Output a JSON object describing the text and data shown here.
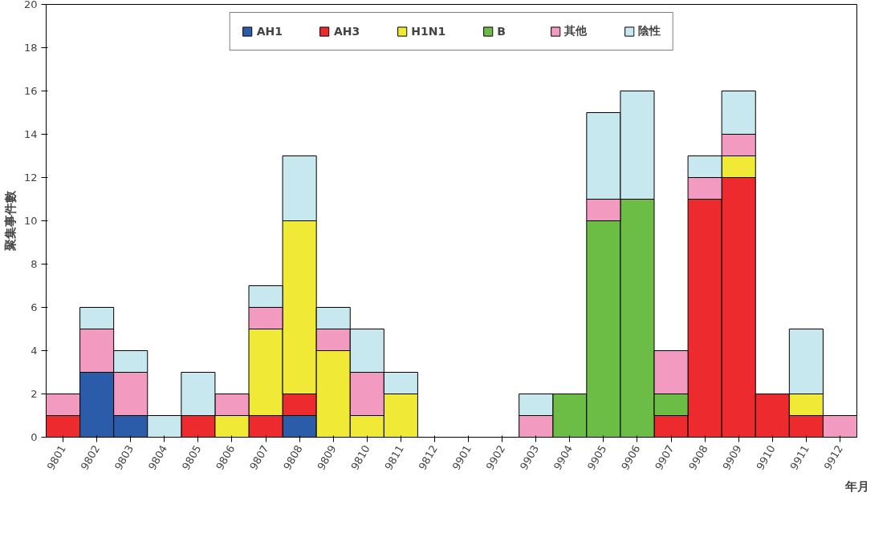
{
  "chart_data": {
    "type": "bar",
    "stacked": true,
    "ylabel": "聚集事件數",
    "xlabel": "年月",
    "categories": [
      "9801",
      "9802",
      "9803",
      "9804",
      "9805",
      "9806",
      "9807",
      "9808",
      "9809",
      "9810",
      "9811",
      "9812",
      "9901",
      "9902",
      "9903",
      "9904",
      "9905",
      "9906",
      "9907",
      "9908",
      "9909",
      "9910",
      "9911",
      "9912"
    ],
    "series": [
      {
        "name": "AH1",
        "color": "#2a5caa",
        "values": [
          0,
          3,
          1,
          0,
          0,
          0,
          0,
          1,
          0,
          0,
          0,
          0,
          0,
          0,
          0,
          0,
          0,
          0,
          0,
          0,
          0,
          0,
          0,
          0
        ]
      },
      {
        "name": "AH3",
        "color": "#ed2a2e",
        "values": [
          1,
          0,
          0,
          0,
          1,
          0,
          1,
          1,
          0,
          0,
          0,
          0,
          0,
          0,
          0,
          0,
          0,
          0,
          1,
          11,
          12,
          2,
          1,
          0
        ]
      },
      {
        "name": "H1N1",
        "color": "#f0e936",
        "values": [
          0,
          0,
          0,
          0,
          0,
          1,
          4,
          8,
          4,
          1,
          2,
          0,
          0,
          0,
          0,
          0,
          0,
          0,
          0,
          0,
          1,
          0,
          1,
          0
        ]
      },
      {
        "name": "B",
        "color": "#6cbd45",
        "values": [
          0,
          0,
          0,
          0,
          0,
          0,
          0,
          0,
          0,
          0,
          0,
          0,
          0,
          0,
          0,
          2,
          10,
          11,
          1,
          0,
          0,
          0,
          0,
          0
        ]
      },
      {
        "name": "其他",
        "color": "#f29ac0",
        "values": [
          1,
          2,
          2,
          0,
          0,
          1,
          1,
          0,
          1,
          2,
          0,
          0,
          0,
          0,
          1,
          0,
          1,
          0,
          2,
          1,
          1,
          0,
          0,
          1
        ]
      },
      {
        "name": "陰性",
        "color": "#c8e8ef",
        "values": [
          0,
          1,
          1,
          1,
          2,
          0,
          1,
          3,
          1,
          2,
          1,
          0,
          0,
          0,
          1,
          0,
          4,
          5,
          0,
          1,
          2,
          0,
          3,
          0
        ]
      }
    ],
    "ylim": [
      0,
      20
    ],
    "yticks": [
      0,
      2,
      4,
      6,
      8,
      10,
      12,
      14,
      16,
      18,
      20
    ],
    "grid": false,
    "legend": "top"
  }
}
